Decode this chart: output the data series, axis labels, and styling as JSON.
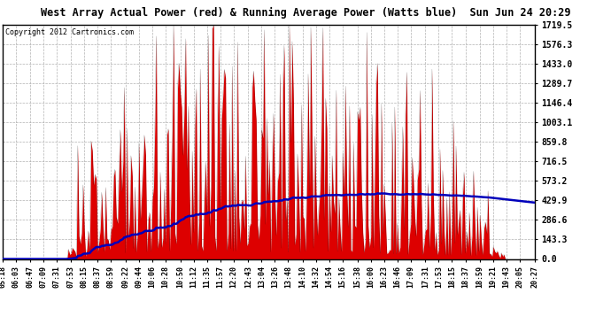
{
  "title": "West Array Actual Power (red) & Running Average Power (Watts blue)  Sun Jun 24 20:29",
  "copyright": "Copyright 2012 Cartronics.com",
  "y_ticks": [
    0.0,
    143.3,
    286.6,
    429.9,
    573.2,
    716.5,
    859.8,
    1003.1,
    1146.4,
    1289.7,
    1433.0,
    1576.3,
    1719.5
  ],
  "y_max": 1719.5,
  "background_color": "#ffffff",
  "plot_bg_color": "#ffffff",
  "bar_color": "#dd0000",
  "avg_color": "#0000bb",
  "grid_color": "#aaaaaa",
  "title_bg": "#c8c8c8",
  "border_color": "#000000",
  "x_labels": [
    "05:18",
    "06:03",
    "06:47",
    "07:09",
    "07:31",
    "07:53",
    "08:15",
    "08:37",
    "08:59",
    "09:22",
    "09:44",
    "10:06",
    "10:28",
    "10:50",
    "11:12",
    "11:35",
    "11:57",
    "12:20",
    "12:43",
    "13:04",
    "13:26",
    "13:48",
    "14:10",
    "14:32",
    "14:54",
    "15:16",
    "15:38",
    "16:00",
    "16:23",
    "16:46",
    "17:09",
    "17:31",
    "17:53",
    "18:15",
    "18:37",
    "18:59",
    "19:21",
    "19:43",
    "20:05",
    "20:27"
  ]
}
